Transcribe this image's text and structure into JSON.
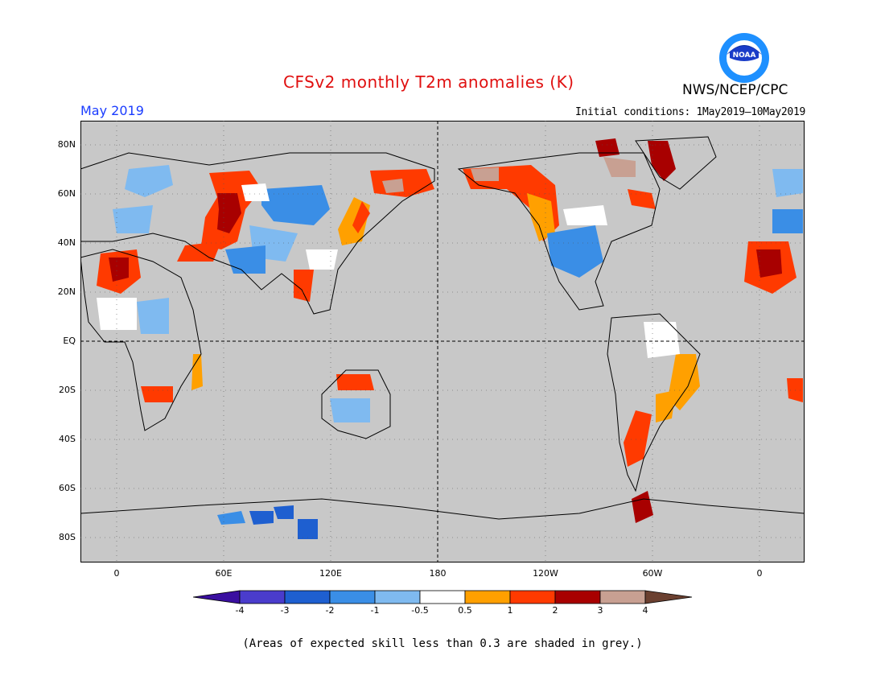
{
  "header": {
    "title": "CFSv2 monthly T2m anomalies (K)",
    "organization": "NWS/NCEP/CPC",
    "month": "May 2019",
    "initial_conditions": "Initial conditions: 1May2019—10May2019",
    "logo_text": "NOAA"
  },
  "map": {
    "background_color": "#c8c8c8",
    "land_outline_color": "#000000",
    "lat_labels": [
      "80N",
      "60N",
      "40N",
      "20N",
      "EQ",
      "20S",
      "40S",
      "60S",
      "80S"
    ],
    "lon_labels": [
      "0",
      "60E",
      "120E",
      "180",
      "120W",
      "60W",
      "0"
    ],
    "lat_values": [
      80,
      60,
      40,
      20,
      0,
      -20,
      -40,
      -60,
      -80
    ],
    "lon_values": [
      0,
      60,
      120,
      180,
      240,
      300,
      360
    ]
  },
  "colorbar": {
    "labels": [
      "-4",
      "-3",
      "-2",
      "-1",
      "-0.5",
      "0.5",
      "1",
      "2",
      "3",
      "4"
    ],
    "colors": [
      "#3a0fa0",
      "#4a3ccc",
      "#1e5fd0",
      "#3a8ee6",
      "#7fbaf0",
      "#ffffff",
      "#ffa000",
      "#ff3a00",
      "#a80000",
      "#c8a092",
      "#6b4030"
    ]
  },
  "footnote": "(Areas of expected skill less than 0.3 are shaded in grey.)"
}
